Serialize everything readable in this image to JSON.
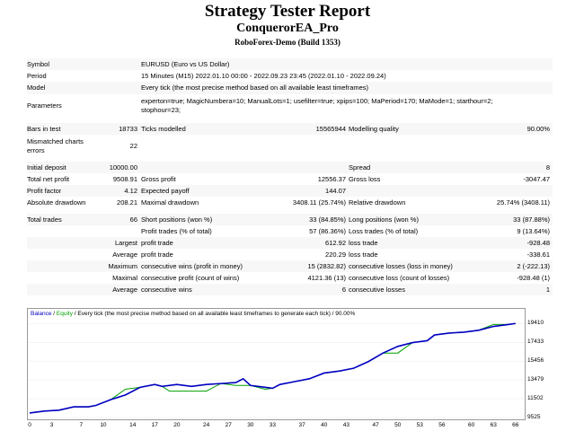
{
  "report": {
    "title": "Strategy Tester Report",
    "expert": "ConquerorEA_Pro",
    "server": "RoboForex-Demo (Build 1353)"
  },
  "info": {
    "symbol_label": "Symbol",
    "symbol_value": "EURUSD (Euro vs US Dollar)",
    "period_label": "Period",
    "period_value": "15 Minutes (M15) 2022.01.10 00:00 - 2022.09.23 23:45 (2022.01.10 - 2022.09.24)",
    "model_label": "Model",
    "model_value": "Every tick (the most precise method based on all available least timeframes)",
    "parameters_label": "Parameters",
    "parameters_line1": "experton=true; MagicNumbera=10; ManualLots=1; usefilter=true; xpips=100; MaPeriod=170; MaMode=1; starthour=2;",
    "parameters_line2": "stophour=23;"
  },
  "stats": {
    "bars_label": "Bars in test",
    "bars_value": "18733",
    "ticks_label": "Ticks modelled",
    "ticks_value": "15565944",
    "quality_label": "Modelling quality",
    "quality_value": "90.00%",
    "mismatch_label_1": "Mismatched charts",
    "mismatch_label_2": "errors",
    "mismatch_value": "22",
    "deposit_label": "Initial deposit",
    "deposit_value": "10000.00",
    "spread_label": "Spread",
    "spread_value": "8",
    "netprofit_label": "Total net profit",
    "netprofit_value": "9508.91",
    "grossprofit_label": "Gross profit",
    "grossprofit_value": "12556.37",
    "grossloss_label": "Gross loss",
    "grossloss_value": "-3047.47",
    "pf_label": "Profit factor",
    "pf_value": "4.12",
    "payoff_label": "Expected payoff",
    "payoff_value": "144.07",
    "absdd_label": "Absolute drawdown",
    "absdd_value": "208.21",
    "maxdd_label": "Maximal drawdown",
    "maxdd_value": "3408.11 (25.74%)",
    "reldd_label": "Relative drawdown",
    "reldd_value": "25.74% (3408.11)",
    "trades_label": "Total trades",
    "trades_value": "66",
    "short_label": "Short positions (won %)",
    "short_value": "33 (84.85%)",
    "long_label": "Long positions (won %)",
    "long_value": "33 (87.88%)",
    "ptrades_label": "Profit trades (% of total)",
    "ptrades_value": "57 (86.36%)",
    "ltrades_label": "Loss trades (% of total)",
    "ltrades_value": "9 (13.64%)",
    "largest_label": "Largest",
    "profit_trade_label": "profit trade",
    "largest_profit": "612.92",
    "loss_trade_label": "loss trade",
    "largest_loss": "-928.48",
    "average_label": "Average",
    "average_profit": "220.29",
    "average_loss": "-338.61",
    "maximum_label": "Maximum",
    "maxwins_label": "consecutive wins (profit in money)",
    "maxwins_value": "15 (2832.82)",
    "maxlosses_label": "consecutive losses (loss in money)",
    "maxlosses_value": "2 (-222.13)",
    "maximal_label": "Maximal",
    "maxprofit_label": "consecutive profit (count of wins)",
    "maxprofit_value": "4121.36 (13)",
    "maxloss_label": "consecutive loss (count of losses)",
    "maxloss_value": "-928.48 (1)",
    "avgwins_label": "consecutive wins",
    "avgwins_value": "6",
    "avglosses_label": "consecutive losses",
    "avglosses_value": "1"
  },
  "chart_data": {
    "type": "line",
    "legend": {
      "balance": "Balance",
      "sep1": " / ",
      "equity": "Equity",
      "rest": " / Every tick (the most precise method based on all available least timeframes to generate each tick) / 90.00%"
    },
    "x_ticks": [
      0,
      3,
      7,
      10,
      14,
      17,
      20,
      24,
      27,
      30,
      33,
      37,
      40,
      43,
      47,
      50,
      53,
      56,
      60,
      63,
      66
    ],
    "y_ticks": [
      9525,
      11502,
      13479,
      15456,
      17433,
      19410
    ],
    "xlim": [
      0,
      67
    ],
    "ylim": [
      9525,
      20000
    ],
    "series": [
      {
        "name": "Balance",
        "color": "#0000c0",
        "x": [
          0,
          2,
          4,
          6,
          8,
          9,
          11,
          13,
          15,
          17,
          18,
          20,
          22,
          24,
          26,
          28,
          29,
          30,
          32,
          33,
          34,
          36,
          38,
          40,
          42,
          44,
          46,
          48,
          50,
          52,
          54,
          55,
          57,
          59,
          61,
          63,
          65,
          66
        ],
        "values": [
          10000,
          10200,
          10300,
          10650,
          10650,
          10800,
          11400,
          11900,
          12700,
          13000,
          12800,
          13000,
          12800,
          13000,
          13100,
          13200,
          13600,
          12900,
          12700,
          12600,
          13000,
          13300,
          13600,
          14200,
          14400,
          14700,
          15400,
          16300,
          17000,
          17400,
          17600,
          18200,
          18400,
          18500,
          18700,
          19100,
          19300,
          19410
        ]
      },
      {
        "name": "Equity",
        "color": "#00a000",
        "x": [
          0,
          2,
          4,
          6,
          8,
          9,
          11,
          13,
          15,
          17,
          18,
          19,
          22,
          24,
          26,
          28,
          29,
          30,
          32,
          33,
          34,
          36,
          38,
          40,
          42,
          44,
          46,
          48,
          50,
          52,
          54,
          55,
          57,
          59,
          61,
          63,
          65,
          66
        ],
        "values": [
          10000,
          10200,
          10300,
          10650,
          10650,
          10800,
          11400,
          12500,
          12700,
          13000,
          12800,
          12300,
          12300,
          12300,
          13100,
          12900,
          12900,
          12900,
          12500,
          12600,
          13000,
          13300,
          13600,
          14200,
          14400,
          14700,
          15400,
          16300,
          16300,
          17400,
          17600,
          18200,
          18400,
          18500,
          18700,
          19300,
          19300,
          19410
        ]
      }
    ]
  }
}
